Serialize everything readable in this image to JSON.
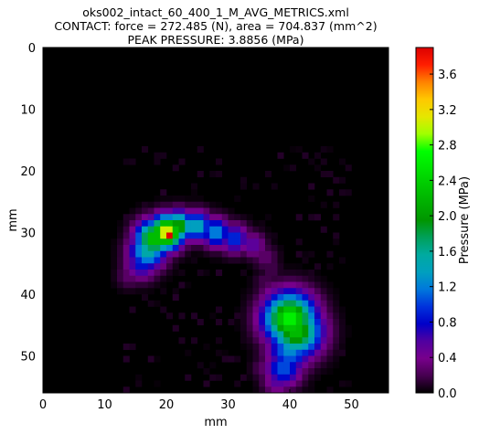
{
  "chart_data": {
    "type": "heatmap",
    "title_lines": [
      "oks002_intact_60_400_1_M_AVG_METRICS.xml",
      "CONTACT: force = 272.485 (N), area = 704.837 (mm^2)",
      "PEAK PRESSURE: 3.8856 (MPa)"
    ],
    "xlabel": "mm",
    "ylabel": "mm",
    "xlim": [
      0,
      56
    ],
    "ylim": [
      56,
      0
    ],
    "x_ticks": [
      "0",
      "10",
      "20",
      "30",
      "40",
      "50"
    ],
    "y_ticks": [
      "0",
      "10",
      "20",
      "30",
      "40",
      "50"
    ],
    "colorbar": {
      "label": "Pressure (MPa)",
      "range": [
        0,
        3.9
      ],
      "ticks": [
        "0.0",
        "0.4",
        "0.8",
        "1.2",
        "1.6",
        "2.0",
        "2.4",
        "2.8",
        "3.2",
        "3.6"
      ],
      "colormap": "nipy_spectral"
    },
    "peak": {
      "x": 20.5,
      "y": 30.0,
      "value": 3.8856
    },
    "regions": [
      {
        "name": "upper-arc",
        "points": [
          [
            14,
            37
          ],
          [
            16,
            35
          ],
          [
            17,
            33
          ],
          [
            18,
            31
          ],
          [
            20,
            30
          ],
          [
            22,
            29
          ],
          [
            25,
            29
          ],
          [
            28,
            30
          ],
          [
            31,
            31
          ],
          [
            34,
            32
          ],
          [
            36,
            34
          ],
          [
            37,
            36
          ]
        ],
        "widths": [
          1.4,
          1.8,
          2.0,
          2.0,
          1.8,
          1.6,
          1.6,
          1.6,
          1.6,
          1.4,
          1.4,
          1.2
        ],
        "values": [
          0.3,
          0.9,
          1.6,
          2.4,
          3.3,
          2.2,
          1.5,
          1.3,
          1.0,
          0.6,
          0.3,
          0.2
        ]
      },
      {
        "name": "lower-blob",
        "points": [
          [
            36,
            38
          ],
          [
            38,
            41
          ],
          [
            40,
            44
          ],
          [
            41,
            46
          ],
          [
            40,
            49
          ],
          [
            39,
            52
          ],
          [
            38,
            54
          ],
          [
            36,
            52
          ]
        ],
        "widths": [
          1.3,
          2.0,
          2.8,
          2.8,
          2.4,
          2.0,
          1.6,
          1.4
        ],
        "values": [
          0.2,
          0.7,
          2.7,
          2.3,
          1.3,
          1.1,
          0.6,
          0.3
        ]
      }
    ]
  }
}
